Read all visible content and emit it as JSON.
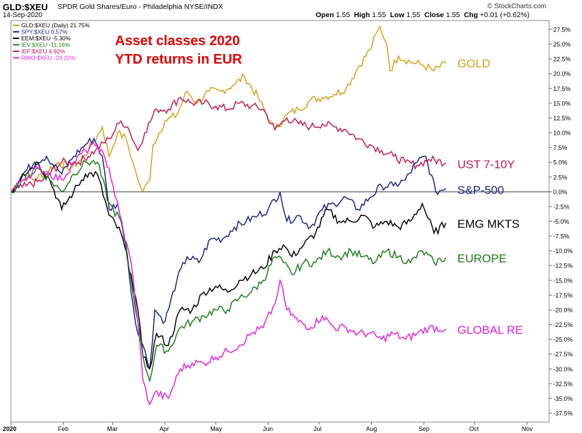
{
  "header": {
    "symbol": "GLD:$XEU",
    "description": "SPDR Gold Shares/Euro - Philadelphia NYSE/INDX",
    "copyright": "© StockCharts.com",
    "date": "14-Sep-2020",
    "quote": {
      "open_label": "Open",
      "open": "1.55",
      "high_label": "High",
      "high": "1.55",
      "low_label": "Low",
      "low": "1.55",
      "close_label": "Close",
      "close": "1.55",
      "chg_label": "Chg",
      "chg": "+0.01 (+0.62%)"
    }
  },
  "chart_data": {
    "type": "line",
    "title": "Asset classes 2020\nYTD returns in EUR",
    "title_lines": [
      "Asset classes 2020",
      "YTD returns in EUR"
    ],
    "title_color": "#e00000",
    "xlabel": "",
    "ylabel": "",
    "ylim": [
      -39,
      29
    ],
    "y_ticks": [
      "27.5%",
      "25.0%",
      "22.5%",
      "20.0%",
      "17.5%",
      "15.0%",
      "12.5%",
      "10.0%",
      "7.5%",
      "5.0%",
      "2.5%",
      "0.0%",
      "-2.5%",
      "-5.0%",
      "-7.5%",
      "-10.0%",
      "-12.5%",
      "-15.0%",
      "-17.5%",
      "-20.0%",
      "-22.5%",
      "-25.0%",
      "-27.5%",
      "-30.0%",
      "-32.5%",
      "-35.0%",
      "-37.5%"
    ],
    "y_tick_values": [
      27.5,
      25,
      22.5,
      20,
      17.5,
      15,
      12.5,
      10,
      7.5,
      5,
      2.5,
      0,
      -2.5,
      -5,
      -7.5,
      -10,
      -12.5,
      -15,
      -17.5,
      -20,
      -22.5,
      -25,
      -27.5,
      -30,
      -32.5,
      -35,
      -37.5
    ],
    "x_ticks": [
      "2020",
      "Feb",
      "Mar",
      "Apr",
      "May",
      "Jun",
      "Jul",
      "Aug",
      "Sep",
      "Oct",
      "Nov"
    ],
    "x_tick_values": [
      "2020-01-01",
      "2020-02-01",
      "2020-03-01",
      "2020-04-01",
      "2020-05-01",
      "2020-06-01",
      "2020-07-01",
      "2020-08-01",
      "2020-09-01",
      "2020-10-01",
      "2020-11-01"
    ],
    "xlim": [
      "2020-01-01",
      "2020-11-14"
    ],
    "grid": false,
    "zero_line": true,
    "legend_placement": "top-left",
    "legend": [
      {
        "label": "GLD:$XEU (Daily) 21.75%",
        "color": "#d4a017"
      },
      {
        "label": "SPY:$XEU 0.57%",
        "color": "#1a237e"
      },
      {
        "label": "EEM:$XEU -5.30%",
        "color": "#000000"
      },
      {
        "label": "IEV:$XEU -11.16%",
        "color": "#1b7a1b"
      },
      {
        "label": "IEF:$XEU 4.92%",
        "color": "#c2185b"
      },
      {
        "label": "RWO:$XEU -23.22%",
        "color": "#e020e0"
      }
    ],
    "series": [
      {
        "name": "GOLD",
        "color": "#d4a017",
        "points": [
          [
            "2020-01-01",
            0
          ],
          [
            "2020-01-08",
            3
          ],
          [
            "2020-01-15",
            2
          ],
          [
            "2020-01-22",
            3.5
          ],
          [
            "2020-01-29",
            5
          ],
          [
            "2020-02-05",
            4
          ],
          [
            "2020-02-12",
            5.5
          ],
          [
            "2020-02-19",
            8.5
          ],
          [
            "2020-02-24",
            11
          ],
          [
            "2020-02-28",
            6
          ],
          [
            "2020-03-04",
            10
          ],
          [
            "2020-03-09",
            9
          ],
          [
            "2020-03-13",
            5
          ],
          [
            "2020-03-16",
            2
          ],
          [
            "2020-03-19",
            0
          ],
          [
            "2020-03-23",
            2
          ],
          [
            "2020-03-25",
            8
          ],
          [
            "2020-04-01",
            12
          ],
          [
            "2020-04-08",
            13
          ],
          [
            "2020-04-14",
            17
          ],
          [
            "2020-04-20",
            15
          ],
          [
            "2020-04-27",
            17
          ],
          [
            "2020-05-04",
            17
          ],
          [
            "2020-05-11",
            18
          ],
          [
            "2020-05-18",
            19.5
          ],
          [
            "2020-05-26",
            16
          ],
          [
            "2020-06-02",
            12
          ],
          [
            "2020-06-05",
            10.5
          ],
          [
            "2020-06-12",
            13
          ],
          [
            "2020-06-19",
            14
          ],
          [
            "2020-06-26",
            15.5
          ],
          [
            "2020-07-03",
            16
          ],
          [
            "2020-07-10",
            16.5
          ],
          [
            "2020-07-17",
            17.5
          ],
          [
            "2020-07-24",
            21
          ],
          [
            "2020-07-31",
            24
          ],
          [
            "2020-08-06",
            28
          ],
          [
            "2020-08-10",
            25
          ],
          [
            "2020-08-12",
            20.5
          ],
          [
            "2020-08-17",
            23
          ],
          [
            "2020-08-24",
            22
          ],
          [
            "2020-08-31",
            21.5
          ],
          [
            "2020-09-07",
            20.5
          ],
          [
            "2020-09-14",
            21.75
          ]
        ]
      },
      {
        "name": "UST 7-10Y",
        "color": "#c2185b",
        "points": [
          [
            "2020-01-01",
            0
          ],
          [
            "2020-01-10",
            1
          ],
          [
            "2020-01-20",
            2
          ],
          [
            "2020-01-31",
            5
          ],
          [
            "2020-02-10",
            5
          ],
          [
            "2020-02-20",
            7
          ],
          [
            "2020-02-28",
            9
          ],
          [
            "2020-03-06",
            12
          ],
          [
            "2020-03-10",
            11
          ],
          [
            "2020-03-16",
            7
          ],
          [
            "2020-03-20",
            10
          ],
          [
            "2020-03-27",
            14
          ],
          [
            "2020-04-03",
            14
          ],
          [
            "2020-04-10",
            16
          ],
          [
            "2020-04-17",
            15
          ],
          [
            "2020-04-24",
            15
          ],
          [
            "2020-05-01",
            14.5
          ],
          [
            "2020-05-08",
            14
          ],
          [
            "2020-05-15",
            15
          ],
          [
            "2020-05-22",
            14.5
          ],
          [
            "2020-05-29",
            14
          ],
          [
            "2020-06-05",
            10.5
          ],
          [
            "2020-06-12",
            12.5
          ],
          [
            "2020-06-19",
            11.5
          ],
          [
            "2020-06-26",
            11
          ],
          [
            "2020-07-03",
            11.5
          ],
          [
            "2020-07-10",
            11
          ],
          [
            "2020-07-17",
            10.5
          ],
          [
            "2020-07-24",
            9
          ],
          [
            "2020-07-31",
            8
          ],
          [
            "2020-08-07",
            7
          ],
          [
            "2020-08-14",
            6
          ],
          [
            "2020-08-21",
            5
          ],
          [
            "2020-08-28",
            4.5
          ],
          [
            "2020-09-04",
            5.5
          ],
          [
            "2020-09-14",
            4.92
          ]
        ]
      },
      {
        "name": "S&P-500",
        "color": "#1a237e",
        "points": [
          [
            "2020-01-01",
            0
          ],
          [
            "2020-01-08",
            3
          ],
          [
            "2020-01-15",
            5
          ],
          [
            "2020-01-22",
            6
          ],
          [
            "2020-01-31",
            3
          ],
          [
            "2020-02-07",
            6
          ],
          [
            "2020-02-14",
            8
          ],
          [
            "2020-02-19",
            9
          ],
          [
            "2020-02-24",
            6
          ],
          [
            "2020-02-28",
            -3
          ],
          [
            "2020-03-04",
            -2
          ],
          [
            "2020-03-09",
            -9
          ],
          [
            "2020-03-12",
            -17
          ],
          [
            "2020-03-16",
            -24
          ],
          [
            "2020-03-19",
            -26
          ],
          [
            "2020-03-23",
            -30
          ],
          [
            "2020-03-26",
            -20
          ],
          [
            "2020-04-01",
            -22
          ],
          [
            "2020-04-08",
            -15
          ],
          [
            "2020-04-14",
            -11
          ],
          [
            "2020-04-21",
            -12
          ],
          [
            "2020-04-28",
            -8
          ],
          [
            "2020-05-05",
            -8
          ],
          [
            "2020-05-12",
            -6
          ],
          [
            "2020-05-19",
            -5
          ],
          [
            "2020-05-26",
            -4
          ],
          [
            "2020-06-01",
            -3
          ],
          [
            "2020-06-08",
            0
          ],
          [
            "2020-06-12",
            -5
          ],
          [
            "2020-06-19",
            -4
          ],
          [
            "2020-06-26",
            -6
          ],
          [
            "2020-07-03",
            -3
          ],
          [
            "2020-07-10",
            -2
          ],
          [
            "2020-07-17",
            -1
          ],
          [
            "2020-07-24",
            -3
          ],
          [
            "2020-07-31",
            -1
          ],
          [
            "2020-08-07",
            1
          ],
          [
            "2020-08-14",
            1
          ],
          [
            "2020-08-21",
            2
          ],
          [
            "2020-08-28",
            5
          ],
          [
            "2020-09-02",
            6
          ],
          [
            "2020-09-08",
            0
          ],
          [
            "2020-09-14",
            0.57
          ]
        ]
      },
      {
        "name": "EMG MKTS",
        "color": "#000000",
        "points": [
          [
            "2020-01-01",
            0
          ],
          [
            "2020-01-08",
            3
          ],
          [
            "2020-01-17",
            5
          ],
          [
            "2020-01-24",
            2
          ],
          [
            "2020-01-31",
            -3
          ],
          [
            "2020-02-07",
            0
          ],
          [
            "2020-02-14",
            3
          ],
          [
            "2020-02-21",
            3
          ],
          [
            "2020-02-28",
            -4
          ],
          [
            "2020-03-06",
            -7
          ],
          [
            "2020-03-12",
            -14
          ],
          [
            "2020-03-16",
            -20
          ],
          [
            "2020-03-19",
            -28
          ],
          [
            "2020-03-23",
            -30
          ],
          [
            "2020-03-27",
            -24
          ],
          [
            "2020-04-03",
            -26
          ],
          [
            "2020-04-10",
            -20
          ],
          [
            "2020-04-17",
            -20
          ],
          [
            "2020-04-24",
            -17
          ],
          [
            "2020-05-01",
            -16
          ],
          [
            "2020-05-08",
            -17
          ],
          [
            "2020-05-15",
            -15
          ],
          [
            "2020-05-22",
            -14
          ],
          [
            "2020-05-29",
            -13
          ],
          [
            "2020-06-05",
            -10
          ],
          [
            "2020-06-10",
            -9
          ],
          [
            "2020-06-15",
            -11
          ],
          [
            "2020-06-22",
            -9
          ],
          [
            "2020-06-29",
            -7
          ],
          [
            "2020-07-06",
            -3
          ],
          [
            "2020-07-13",
            -5
          ],
          [
            "2020-07-20",
            -5
          ],
          [
            "2020-07-27",
            -4
          ],
          [
            "2020-08-03",
            -6
          ],
          [
            "2020-08-10",
            -5
          ],
          [
            "2020-08-17",
            -6
          ],
          [
            "2020-08-24",
            -5
          ],
          [
            "2020-08-31",
            -2
          ],
          [
            "2020-09-07",
            -7
          ],
          [
            "2020-09-14",
            -5.3
          ]
        ]
      },
      {
        "name": "EUROPE",
        "color": "#1b7a1b",
        "points": [
          [
            "2020-01-01",
            0
          ],
          [
            "2020-01-08",
            2
          ],
          [
            "2020-01-17",
            4
          ],
          [
            "2020-01-24",
            2
          ],
          [
            "2020-01-31",
            0
          ],
          [
            "2020-02-07",
            3
          ],
          [
            "2020-02-14",
            5
          ],
          [
            "2020-02-21",
            5
          ],
          [
            "2020-02-28",
            -2
          ],
          [
            "2020-03-06",
            -5
          ],
          [
            "2020-03-12",
            -15
          ],
          [
            "2020-03-16",
            -22
          ],
          [
            "2020-03-19",
            -28
          ],
          [
            "2020-03-23",
            -32
          ],
          [
            "2020-03-27",
            -26
          ],
          [
            "2020-04-03",
            -27
          ],
          [
            "2020-04-10",
            -23
          ],
          [
            "2020-04-17",
            -22
          ],
          [
            "2020-04-24",
            -21
          ],
          [
            "2020-05-01",
            -20
          ],
          [
            "2020-05-08",
            -20
          ],
          [
            "2020-05-15",
            -18
          ],
          [
            "2020-05-22",
            -17
          ],
          [
            "2020-05-29",
            -15
          ],
          [
            "2020-06-05",
            -11
          ],
          [
            "2020-06-10",
            -12
          ],
          [
            "2020-06-15",
            -14
          ],
          [
            "2020-06-22",
            -12
          ],
          [
            "2020-06-29",
            -12
          ],
          [
            "2020-07-06",
            -10
          ],
          [
            "2020-07-13",
            -11
          ],
          [
            "2020-07-20",
            -10
          ],
          [
            "2020-07-27",
            -11
          ],
          [
            "2020-08-03",
            -12
          ],
          [
            "2020-08-10",
            -10
          ],
          [
            "2020-08-17",
            -11
          ],
          [
            "2020-08-24",
            -12
          ],
          [
            "2020-08-31",
            -10
          ],
          [
            "2020-09-07",
            -12
          ],
          [
            "2020-09-14",
            -11.16
          ]
        ]
      },
      {
        "name": "GLOBAL RE",
        "color": "#e020e0",
        "points": [
          [
            "2020-01-01",
            0
          ],
          [
            "2020-01-08",
            2
          ],
          [
            "2020-01-17",
            4
          ],
          [
            "2020-01-24",
            3
          ],
          [
            "2020-01-31",
            2
          ],
          [
            "2020-02-07",
            5
          ],
          [
            "2020-02-14",
            7
          ],
          [
            "2020-02-21",
            8
          ],
          [
            "2020-02-28",
            4
          ],
          [
            "2020-03-06",
            -5
          ],
          [
            "2020-03-12",
            -12
          ],
          [
            "2020-03-16",
            -22
          ],
          [
            "2020-03-19",
            -32
          ],
          [
            "2020-03-23",
            -36
          ],
          [
            "2020-03-26",
            -34
          ],
          [
            "2020-04-03",
            -35
          ],
          [
            "2020-04-10",
            -30
          ],
          [
            "2020-04-17",
            -29
          ],
          [
            "2020-04-24",
            -29
          ],
          [
            "2020-05-01",
            -28
          ],
          [
            "2020-05-08",
            -27
          ],
          [
            "2020-05-15",
            -26
          ],
          [
            "2020-05-22",
            -24
          ],
          [
            "2020-05-29",
            -23
          ],
          [
            "2020-06-05",
            -19
          ],
          [
            "2020-06-08",
            -15
          ],
          [
            "2020-06-12",
            -20
          ],
          [
            "2020-06-19",
            -22
          ],
          [
            "2020-06-26",
            -23
          ],
          [
            "2020-07-03",
            -21
          ],
          [
            "2020-07-10",
            -23
          ],
          [
            "2020-07-17",
            -23
          ],
          [
            "2020-07-24",
            -24
          ],
          [
            "2020-07-31",
            -24
          ],
          [
            "2020-08-07",
            -25
          ],
          [
            "2020-08-14",
            -24
          ],
          [
            "2020-08-21",
            -25
          ],
          [
            "2020-08-28",
            -24
          ],
          [
            "2020-09-04",
            -23
          ],
          [
            "2020-09-14",
            -23.22
          ]
        ]
      }
    ]
  }
}
